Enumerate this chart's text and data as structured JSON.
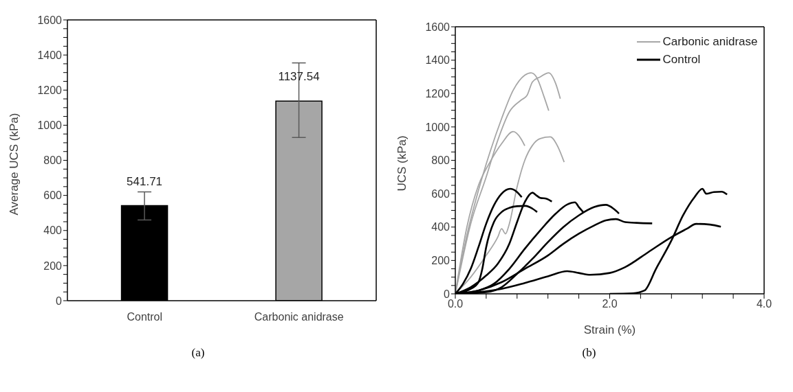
{
  "chart_data": [
    {
      "type": "bar",
      "annotations": [
        "(a)"
      ],
      "ylabel": "Average UCS (kPa)",
      "categories": [
        "Control",
        "Carbonic anidrase"
      ],
      "values": [
        541.71,
        1137.54
      ],
      "colors": [
        "#000000",
        "#a6a6a6"
      ],
      "errors": [
        [
          460,
          620
        ],
        [
          930,
          1355
        ]
      ],
      "data_labels": true,
      "ylim": [
        0,
        1600
      ],
      "yticks": [
        0,
        {
          "value": 50,
          "label": null
        },
        {
          "value": 100,
          "label": null
        },
        {
          "value": 150,
          "label": null
        },
        200,
        {
          "value": 250,
          "label": null
        },
        {
          "value": 300,
          "label": null
        },
        {
          "value": 350,
          "label": null
        },
        400,
        {
          "value": 450,
          "label": null
        },
        {
          "value": 500,
          "label": null
        },
        {
          "value": 550,
          "label": null
        },
        600,
        {
          "value": 650,
          "label": null
        },
        {
          "value": 700,
          "label": null
        },
        {
          "value": 750,
          "label": null
        },
        800,
        {
          "value": 850,
          "label": null
        },
        {
          "value": 900,
          "label": null
        },
        {
          "value": 950,
          "label": null
        },
        1000,
        {
          "value": 1050,
          "label": null
        },
        {
          "value": 1100,
          "label": null
        },
        {
          "value": 1150,
          "label": null
        },
        1200,
        {
          "value": 1250,
          "label": null
        },
        {
          "value": 1300,
          "label": null
        },
        {
          "value": 1350,
          "label": null
        },
        1400,
        {
          "value": 1450,
          "label": null
        },
        {
          "value": 1500,
          "label": null
        },
        {
          "value": 1550,
          "label": null
        },
        1600
      ],
      "grid": false
    },
    {
      "type": "line",
      "annotations": [
        "(b)"
      ],
      "xlabel": "Strain (%)",
      "ylabel": "UCS (kPa)",
      "xlim": [
        0,
        4
      ],
      "xticks": [
        {
          "value": 0,
          "label": "0.0"
        },
        {
          "value": 0.4,
          "label": null
        },
        {
          "value": 0.8,
          "label": null
        },
        {
          "value": 1.2,
          "label": null
        },
        {
          "value": 1.6,
          "label": null
        },
        {
          "value": 2,
          "label": "2.0"
        },
        {
          "value": 2.4,
          "label": null
        },
        {
          "value": 2.8,
          "label": null
        },
        {
          "value": 3.2,
          "label": null
        },
        {
          "value": 3.6,
          "label": null
        },
        {
          "value": 4,
          "label": "4.0"
        }
      ],
      "ylim": [
        0,
        1600
      ],
      "yticks": [
        0,
        {
          "value": 50,
          "label": null
        },
        {
          "value": 100,
          "label": null
        },
        {
          "value": 150,
          "label": null
        },
        200,
        {
          "value": 250,
          "label": null
        },
        {
          "value": 300,
          "label": null
        },
        {
          "value": 350,
          "label": null
        },
        400,
        {
          "value": 450,
          "label": null
        },
        {
          "value": 500,
          "label": null
        },
        {
          "value": 550,
          "label": null
        },
        600,
        {
          "value": 650,
          "label": null
        },
        {
          "value": 700,
          "label": null
        },
        {
          "value": 750,
          "label": null
        },
        800,
        {
          "value": 850,
          "label": null
        },
        {
          "value": 900,
          "label": null
        },
        {
          "value": 950,
          "label": null
        },
        1000,
        {
          "value": 1050,
          "label": null
        },
        {
          "value": 1100,
          "label": null
        },
        {
          "value": 1150,
          "label": null
        },
        1200,
        {
          "value": 1250,
          "label": null
        },
        {
          "value": 1300,
          "label": null
        },
        {
          "value": 1350,
          "label": null
        },
        1400,
        {
          "value": 1450,
          "label": null
        },
        {
          "value": 1500,
          "label": null
        },
        {
          "value": 1550,
          "label": null
        },
        1600
      ],
      "grid": false,
      "legend": "top right",
      "marker": "none",
      "series": [
        {
          "name": "Carbonic anidrase",
          "color": "#a6a6a6",
          "x": [
            0,
            0.15,
            0.3,
            0.45,
            0.6,
            0.75,
            0.9,
            0.98,
            1.05,
            1.15,
            1.21
          ],
          "values": [
            0,
            350,
            620,
            850,
            1050,
            1220,
            1310,
            1324,
            1300,
            1180,
            1097
          ]
        },
        {
          "color": "#a6a6a6",
          "x": [
            0,
            0.2,
            0.4,
            0.55,
            0.7,
            0.85,
            0.93,
            1.0,
            1.1,
            1.21,
            1.3,
            1.36
          ],
          "values": [
            0,
            420,
            700,
            920,
            1090,
            1160,
            1190,
            1270,
            1300,
            1324,
            1260,
            1169
          ]
        },
        {
          "color": "#a6a6a6",
          "x": [
            0,
            0.15,
            0.3,
            0.45,
            0.6,
            0.75,
            0.85,
            0.9
          ],
          "values": [
            0,
            400,
            650,
            790,
            900,
            972,
            930,
            887
          ]
        },
        {
          "color": "#a6a6a6",
          "x": [
            0,
            0.2,
            0.4,
            0.55,
            0.6,
            0.65,
            0.7,
            0.8,
            0.9,
            1.0,
            1.1,
            1.23,
            1.33,
            1.41
          ],
          "values": [
            0,
            100,
            230,
            340,
            390,
            360,
            420,
            640,
            800,
            890,
            930,
            940,
            880,
            789
          ]
        },
        {
          "name": "Control",
          "color": "#000000",
          "x": [
            0,
            0.1,
            0.2,
            0.3,
            0.4,
            0.5,
            0.6,
            0.71,
            0.8,
            0.86
          ],
          "values": [
            0,
            60,
            150,
            280,
            420,
            530,
            600,
            629,
            610,
            579
          ]
        },
        {
          "color": "#000000",
          "x": [
            0,
            0.2,
            0.3,
            0.35,
            0.4,
            0.5,
            0.6,
            0.7,
            0.8,
            0.91,
            1.0,
            1.06
          ],
          "values": [
            0,
            30,
            70,
            150,
            280,
            430,
            490,
            515,
            525,
            527,
            510,
            490
          ]
        },
        {
          "color": "#000000",
          "x": [
            0,
            0.2,
            0.4,
            0.55,
            0.7,
            0.8,
            0.9,
            1.0,
            1.05,
            1.1,
            1.18,
            1.25
          ],
          "values": [
            0,
            40,
            110,
            180,
            300,
            430,
            550,
            606,
            590,
            575,
            570,
            553
          ]
        },
        {
          "color": "#000000",
          "x": [
            0,
            0.3,
            0.5,
            0.7,
            0.9,
            1.1,
            1.3,
            1.45,
            1.55,
            1.6,
            1.66
          ],
          "values": [
            0,
            20,
            60,
            150,
            270,
            380,
            480,
            535,
            548,
            520,
            488
          ]
        },
        {
          "color": "#000000",
          "x": [
            0,
            0.4,
            0.6,
            0.8,
            1.0,
            1.2,
            1.4,
            1.6,
            1.8,
            1.95,
            2.05,
            2.12
          ],
          "values": [
            0,
            10,
            40,
            120,
            210,
            310,
            400,
            470,
            520,
            533,
            510,
            481
          ]
        },
        {
          "color": "#000000",
          "x": [
            0,
            0.3,
            0.6,
            0.9,
            1.2,
            1.4,
            1.6,
            1.8,
            1.95,
            2.08,
            2.2,
            2.35,
            2.55
          ],
          "values": [
            0,
            20,
            70,
            150,
            230,
            300,
            360,
            410,
            440,
            448,
            430,
            425,
            422
          ]
        },
        {
          "color": "#000000",
          "x": [
            0,
            0.3,
            0.6,
            0.9,
            1.2,
            1.45,
            1.6,
            1.75,
            2.0,
            2.2,
            2.5,
            2.8,
            3.0,
            3.12,
            3.3,
            3.44
          ],
          "values": [
            0,
            10,
            30,
            65,
            105,
            136,
            125,
            114,
            125,
            160,
            250,
            340,
            390,
            419,
            415,
            402
          ]
        },
        {
          "color": "#000000",
          "x": [
            2.0,
            2.3,
            2.45,
            2.6,
            2.8,
            2.95,
            3.1,
            3.2,
            3.25,
            3.35,
            3.45,
            3.52
          ],
          "values": [
            0,
            3,
            20,
            150,
            320,
            470,
            580,
            629,
            600,
            610,
            612,
            595
          ]
        }
      ]
    }
  ]
}
